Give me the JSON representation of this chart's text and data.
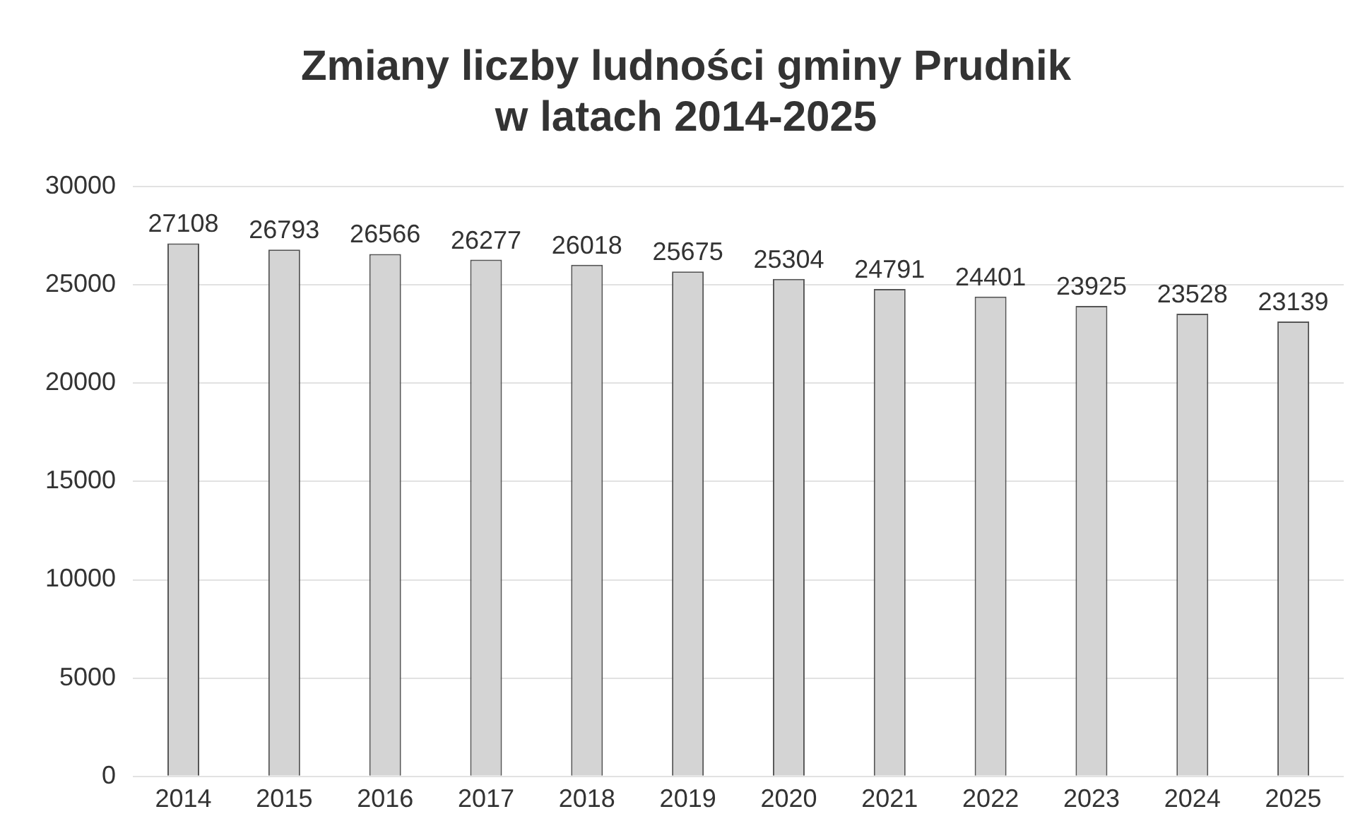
{
  "chart_data": {
    "type": "bar",
    "title": "Zmiany liczby ludności gminy Prudnik\nw latach 2014-2025",
    "categories": [
      "2014",
      "2015",
      "2016",
      "2017",
      "2018",
      "2019",
      "2020",
      "2021",
      "2022",
      "2023",
      "2024",
      "2025"
    ],
    "values": [
      27108,
      26793,
      26566,
      26277,
      26018,
      25675,
      25304,
      24791,
      24401,
      23925,
      23528,
      23139
    ],
    "color": "#d4d4d4",
    "ylim": [
      0,
      30000
    ],
    "yticks": [
      0,
      5000,
      10000,
      15000,
      20000,
      25000,
      30000
    ],
    "grid": "y",
    "data_labels": true
  }
}
